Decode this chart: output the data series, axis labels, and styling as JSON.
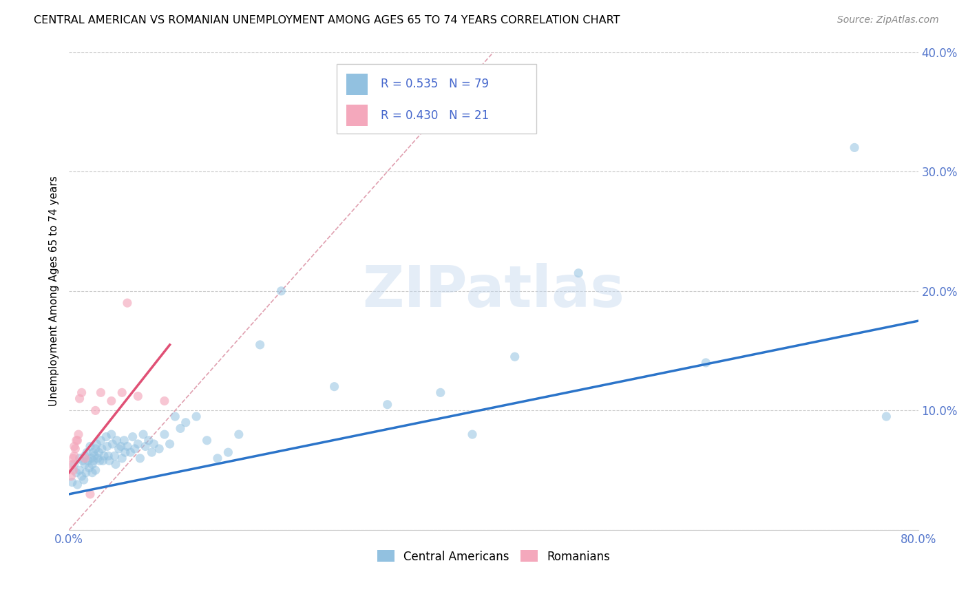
{
  "title": "CENTRAL AMERICAN VS ROMANIAN UNEMPLOYMENT AMONG AGES 65 TO 74 YEARS CORRELATION CHART",
  "source": "Source: ZipAtlas.com",
  "ylabel": "Unemployment Among Ages 65 to 74 years",
  "xlim": [
    0,
    0.8
  ],
  "ylim": [
    0,
    0.4
  ],
  "xticks": [
    0.0,
    0.1,
    0.2,
    0.3,
    0.4,
    0.5,
    0.6,
    0.7,
    0.8
  ],
  "xtick_labels_shown": [
    "0.0%",
    "",
    "",
    "",
    "",
    "",
    "",
    "",
    "80.0%"
  ],
  "yticks": [
    0.0,
    0.1,
    0.2,
    0.3,
    0.4
  ],
  "ytick_labels": [
    "",
    "10.0%",
    "20.0%",
    "30.0%",
    "40.0%"
  ],
  "legend_labels": [
    "Central Americans",
    "Romanians"
  ],
  "R_blue": 0.535,
  "N_blue": 79,
  "R_pink": 0.43,
  "N_pink": 21,
  "blue_color": "#92C1E0",
  "pink_color": "#F4A8BC",
  "blue_line_color": "#2B74C9",
  "pink_line_color": "#E05075",
  "ref_line_color": "#E0A0B0",
  "watermark": "ZIPatlas",
  "blue_scatter_x": [
    0.003,
    0.005,
    0.007,
    0.008,
    0.01,
    0.01,
    0.012,
    0.013,
    0.014,
    0.015,
    0.015,
    0.016,
    0.017,
    0.018,
    0.019,
    0.02,
    0.021,
    0.022,
    0.022,
    0.023,
    0.023,
    0.024,
    0.025,
    0.025,
    0.026,
    0.027,
    0.028,
    0.029,
    0.03,
    0.031,
    0.032,
    0.033,
    0.035,
    0.036,
    0.037,
    0.038,
    0.04,
    0.041,
    0.043,
    0.044,
    0.045,
    0.047,
    0.049,
    0.05,
    0.052,
    0.053,
    0.055,
    0.058,
    0.06,
    0.062,
    0.065,
    0.067,
    0.07,
    0.072,
    0.075,
    0.078,
    0.08,
    0.085,
    0.09,
    0.095,
    0.1,
    0.105,
    0.11,
    0.12,
    0.13,
    0.14,
    0.15,
    0.16,
    0.18,
    0.2,
    0.25,
    0.3,
    0.35,
    0.38,
    0.42,
    0.48,
    0.6,
    0.74,
    0.77
  ],
  "blue_scatter_y": [
    0.04,
    0.055,
    0.048,
    0.038,
    0.06,
    0.05,
    0.045,
    0.058,
    0.042,
    0.062,
    0.055,
    0.048,
    0.065,
    0.058,
    0.052,
    0.07,
    0.06,
    0.055,
    0.048,
    0.065,
    0.058,
    0.062,
    0.068,
    0.05,
    0.072,
    0.06,
    0.065,
    0.058,
    0.075,
    0.068,
    0.058,
    0.062,
    0.078,
    0.07,
    0.062,
    0.058,
    0.08,
    0.072,
    0.062,
    0.055,
    0.075,
    0.068,
    0.07,
    0.06,
    0.075,
    0.065,
    0.07,
    0.065,
    0.078,
    0.068,
    0.072,
    0.06,
    0.08,
    0.07,
    0.075,
    0.065,
    0.072,
    0.068,
    0.08,
    0.072,
    0.095,
    0.085,
    0.09,
    0.095,
    0.075,
    0.06,
    0.065,
    0.08,
    0.155,
    0.2,
    0.12,
    0.105,
    0.115,
    0.08,
    0.145,
    0.215,
    0.14,
    0.32,
    0.095
  ],
  "pink_scatter_x": [
    0.002,
    0.003,
    0.004,
    0.004,
    0.005,
    0.005,
    0.006,
    0.007,
    0.008,
    0.009,
    0.01,
    0.012,
    0.015,
    0.02,
    0.025,
    0.03,
    0.04,
    0.05,
    0.055,
    0.065,
    0.09
  ],
  "pink_scatter_y": [
    0.045,
    0.055,
    0.05,
    0.06,
    0.062,
    0.07,
    0.068,
    0.075,
    0.075,
    0.08,
    0.11,
    0.115,
    0.06,
    0.03,
    0.1,
    0.115,
    0.108,
    0.115,
    0.19,
    0.112,
    0.108
  ],
  "blue_line_x": [
    0.0,
    0.8
  ],
  "blue_line_y": [
    0.03,
    0.175
  ],
  "pink_line_x": [
    0.0,
    0.095
  ],
  "pink_line_y": [
    0.048,
    0.155
  ],
  "ref_line_x": [
    0.0,
    0.4
  ],
  "ref_line_y": [
    0.0,
    0.4
  ]
}
